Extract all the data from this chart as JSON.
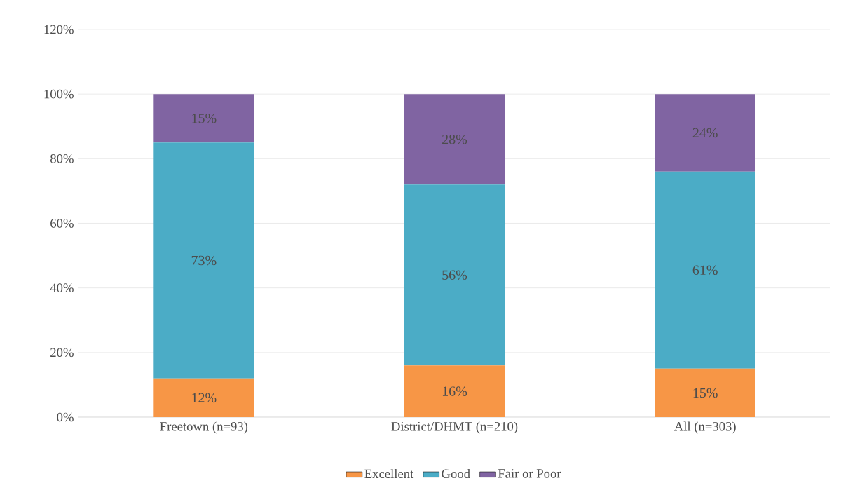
{
  "chart_data": {
    "type": "bar",
    "stacked": true,
    "categories": [
      "Freetown (n=93)",
      "District/DHMT (n=210)",
      "All (n=303)"
    ],
    "series": [
      {
        "name": "Excellent",
        "color": "#f79646",
        "values": [
          12,
          16,
          15
        ],
        "value_labels": [
          "12%",
          "16%",
          "15%"
        ]
      },
      {
        "name": "Good",
        "color": "#4bacc6",
        "values": [
          73,
          56,
          61
        ],
        "value_labels": [
          "73%",
          "56%",
          "61%"
        ]
      },
      {
        "name": "Fair or Poor",
        "color": "#8064a2",
        "values": [
          15,
          28,
          24
        ],
        "value_labels": [
          "15%",
          "28%",
          "24%"
        ]
      }
    ],
    "ylim": [
      0,
      120
    ],
    "yticks": [
      {
        "value": 0,
        "label": "0%"
      },
      {
        "value": 20,
        "label": "20%"
      },
      {
        "value": 40,
        "label": "40%"
      },
      {
        "value": 60,
        "label": "60%"
      },
      {
        "value": 80,
        "label": "80%"
      },
      {
        "value": 100,
        "label": "100%"
      },
      {
        "value": 120,
        "label": "120%"
      }
    ],
    "grid": "y",
    "legend": "bottom"
  }
}
